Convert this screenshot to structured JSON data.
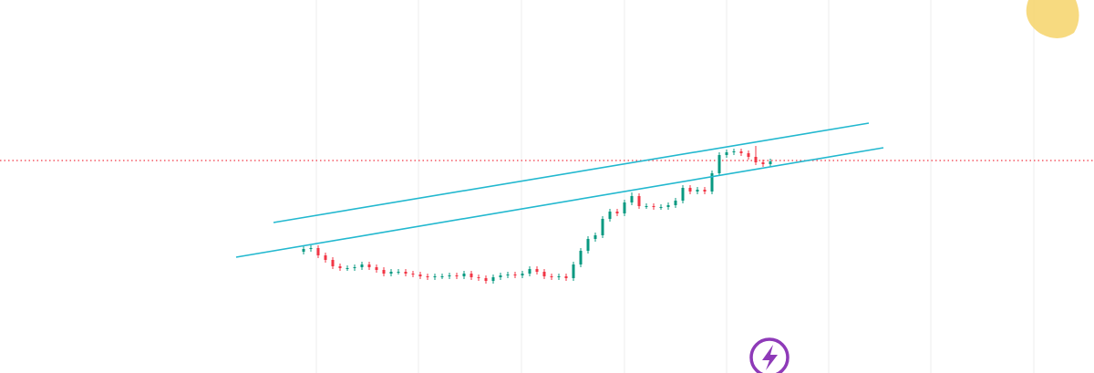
{
  "chart_data": {
    "type": "candlestick",
    "ylim": [
      0,
      409
    ],
    "up_color": "#089981",
    "down_color": "#f23645",
    "open": [
      133,
      136,
      137,
      129,
      124,
      117,
      115,
      115,
      116,
      119,
      116,
      113,
      109,
      111,
      111,
      109,
      108,
      106,
      105,
      106,
      106,
      107,
      106,
      109,
      105,
      104,
      101,
      105,
      107,
      108,
      107,
      109,
      114,
      111,
      106,
      105,
      106,
      104,
      119,
      134,
      147,
      151,
      169,
      177,
      175,
      187,
      194,
      183,
      183,
      182,
      182,
      184,
      189,
      203,
      199,
      201,
      199,
      219,
      239,
      242,
      243,
      241,
      237,
      231,
      229
    ],
    "high": [
      139,
      140,
      140,
      132,
      127,
      120,
      118,
      119,
      122,
      122,
      119,
      116,
      114,
      114,
      114,
      112,
      111,
      109,
      109,
      109,
      110,
      110,
      112,
      112,
      108,
      107,
      108,
      110,
      111,
      111,
      112,
      117,
      117,
      114,
      109,
      109,
      109,
      122,
      137,
      150,
      154,
      172,
      180,
      180,
      190,
      198,
      197,
      186,
      186,
      185,
      187,
      192,
      206,
      206,
      204,
      204,
      222,
      242,
      245,
      246,
      246,
      244,
      249,
      234,
      235
    ],
    "low": [
      130,
      133,
      126,
      121,
      114,
      112,
      112,
      112,
      113,
      113,
      110,
      106,
      106,
      108,
      106,
      105,
      103,
      102,
      102,
      103,
      103,
      103,
      103,
      102,
      101,
      98,
      98,
      102,
      104,
      104,
      104,
      106,
      108,
      103,
      102,
      102,
      101,
      101,
      116,
      131,
      144,
      148,
      166,
      172,
      172,
      184,
      180,
      180,
      179,
      179,
      179,
      181,
      186,
      196,
      196,
      196,
      196,
      216,
      236,
      239,
      238,
      234,
      228,
      226,
      226
    ],
    "close": [
      136,
      137,
      129,
      124,
      117,
      115,
      115,
      116,
      119,
      116,
      113,
      109,
      111,
      111,
      109,
      108,
      106,
      105,
      106,
      106,
      107,
      106,
      109,
      105,
      104,
      101,
      105,
      107,
      108,
      107,
      109,
      114,
      111,
      106,
      105,
      106,
      104,
      119,
      134,
      147,
      151,
      169,
      177,
      175,
      187,
      194,
      183,
      183,
      182,
      182,
      184,
      189,
      203,
      199,
      201,
      199,
      219,
      239,
      242,
      243,
      241,
      237,
      231,
      229,
      232
    ]
  }
}
